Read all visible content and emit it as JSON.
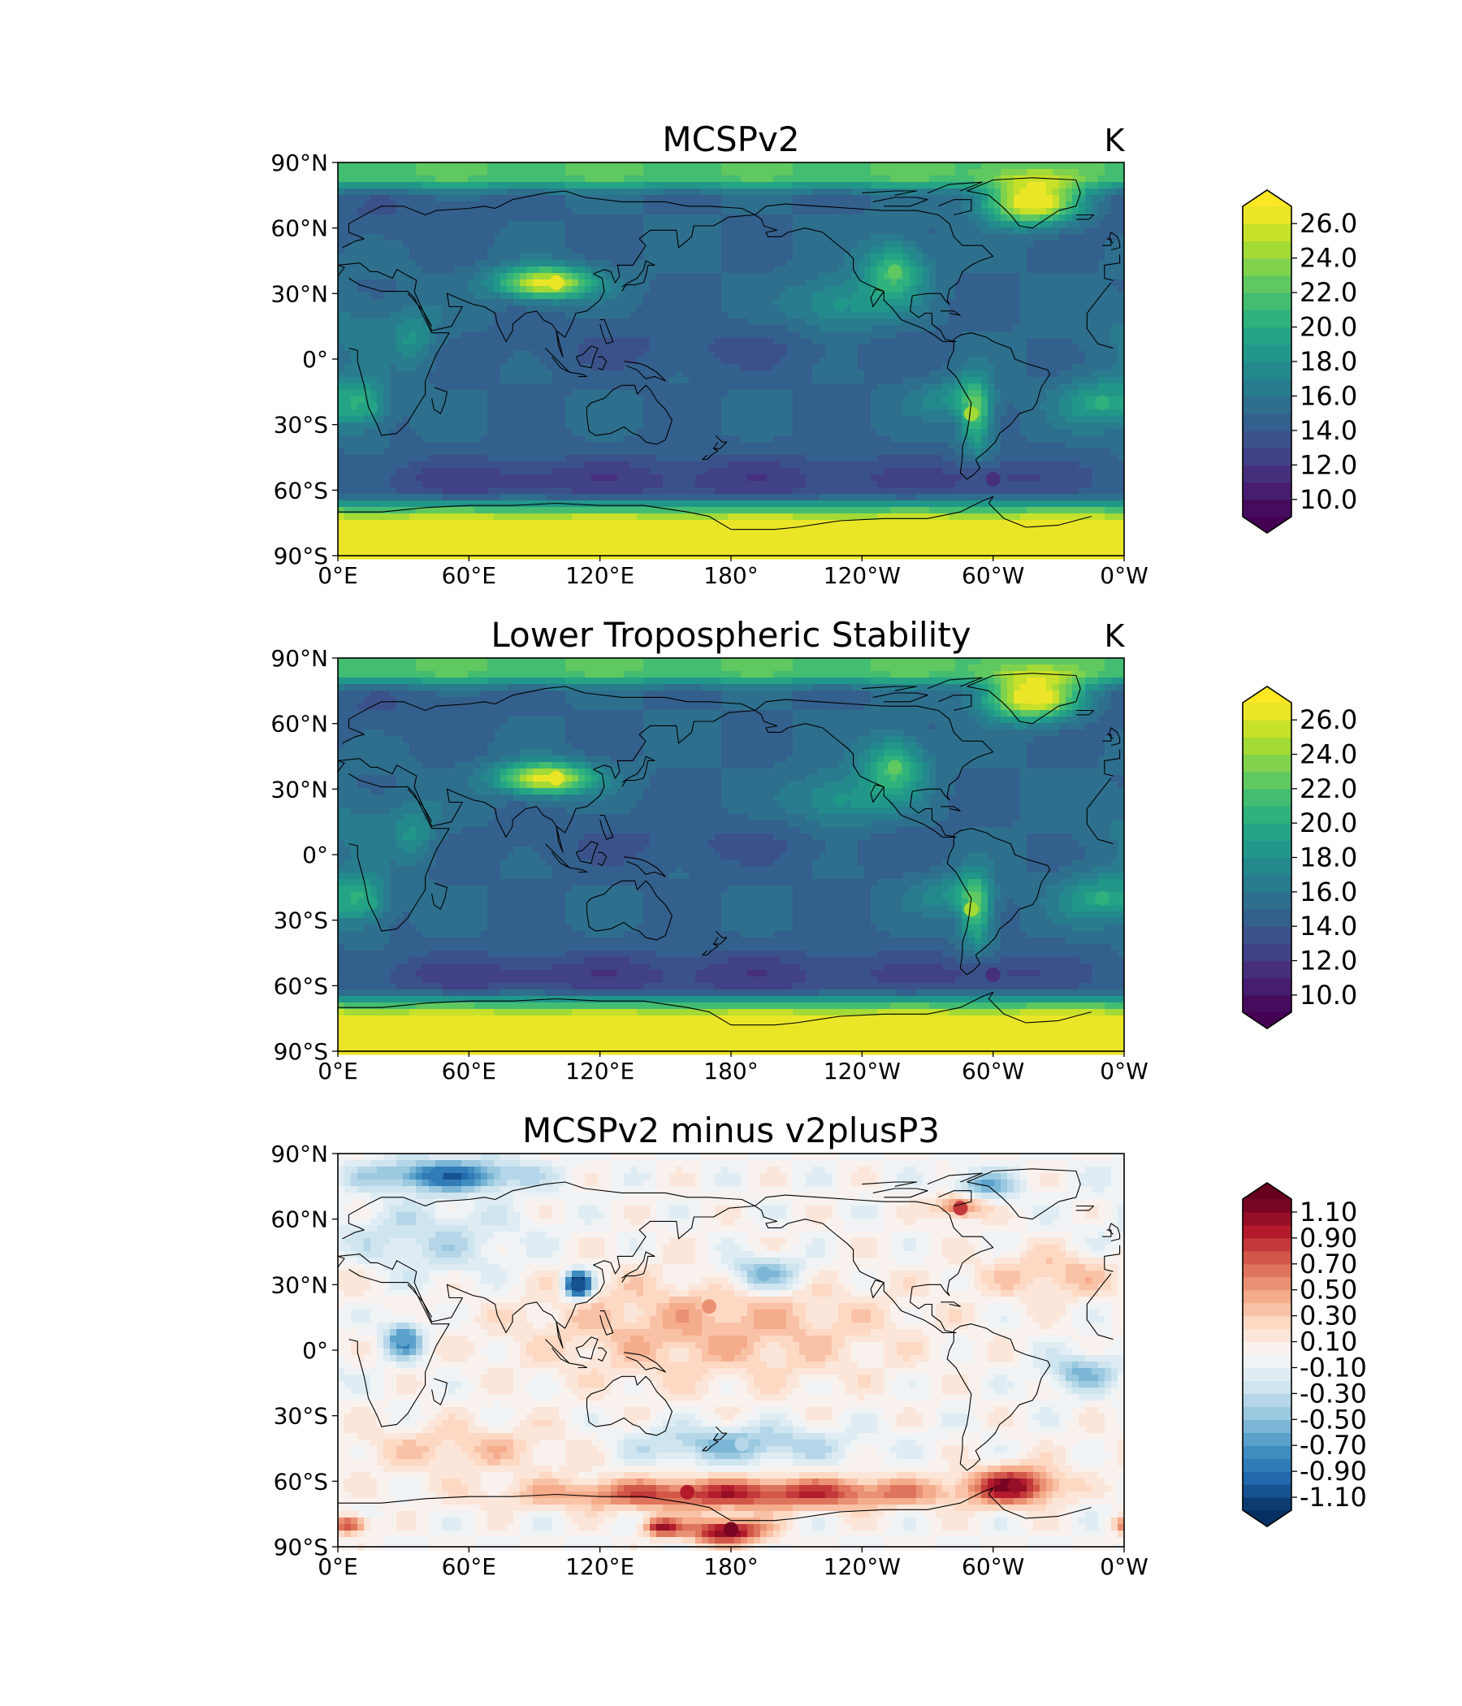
{
  "chart_data": [
    {
      "type": "heatmap",
      "title": "MCSPv2",
      "units": "K",
      "x_ticks": [
        "0°E",
        "60°E",
        "120°E",
        "180°",
        "120°W",
        "60°W",
        "0°W"
      ],
      "y_ticks": [
        "90°N",
        "60°N",
        "30°N",
        "0°",
        "30°S",
        "60°S",
        "90°S"
      ],
      "xlim": [
        0,
        360
      ],
      "ylim": [
        -90,
        90
      ],
      "colormap": "viridis",
      "colorbar": {
        "levels": [
          9,
          10,
          11,
          12,
          13,
          14,
          15,
          16,
          17,
          18,
          19,
          20,
          21,
          22,
          23,
          24,
          25,
          26,
          27
        ],
        "tick_values": [
          10,
          12,
          14,
          16,
          18,
          20,
          22,
          24,
          26
        ],
        "tick_labels": [
          "10.0",
          "12.0",
          "14.0",
          "16.0",
          "18.0",
          "20.0",
          "22.0",
          "24.0",
          "26.0"
        ],
        "extend": "both"
      },
      "features": [
        {
          "lon": 100,
          "lat": 35,
          "value": 27
        },
        {
          "lon": 320,
          "lat": 72,
          "value": 27
        },
        {
          "lon": 290,
          "lat": -25,
          "value": 24
        },
        {
          "lon": 255,
          "lat": 40,
          "value": 22
        },
        {
          "lon": 350,
          "lat": -20,
          "value": 20
        },
        {
          "lon": 15,
          "lat": -22,
          "value": 19
        },
        {
          "lon": 230,
          "lat": 25,
          "value": 18
        },
        {
          "lon": 170,
          "lat": -55,
          "value": 12
        },
        {
          "lon": 300,
          "lat": -55,
          "value": 11
        }
      ]
    },
    {
      "type": "heatmap",
      "title": "Lower Tropospheric Stability",
      "units": "K",
      "x_ticks": [
        "0°E",
        "60°E",
        "120°E",
        "180°",
        "120°W",
        "60°W",
        "0°W"
      ],
      "y_ticks": [
        "90°N",
        "60°N",
        "30°N",
        "0°",
        "30°S",
        "60°S",
        "90°S"
      ],
      "xlim": [
        0,
        360
      ],
      "ylim": [
        -90,
        90
      ],
      "colormap": "viridis",
      "colorbar": {
        "levels": [
          9,
          10,
          11,
          12,
          13,
          14,
          15,
          16,
          17,
          18,
          19,
          20,
          21,
          22,
          23,
          24,
          25,
          26,
          27
        ],
        "tick_values": [
          10,
          12,
          14,
          16,
          18,
          20,
          22,
          24,
          26
        ],
        "tick_labels": [
          "10.0",
          "12.0",
          "14.0",
          "16.0",
          "18.0",
          "20.0",
          "22.0",
          "24.0",
          "26.0"
        ],
        "extend": "both"
      },
      "features": [
        {
          "lon": 100,
          "lat": 35,
          "value": 27
        },
        {
          "lon": 320,
          "lat": 72,
          "value": 27
        },
        {
          "lon": 290,
          "lat": -25,
          "value": 24
        },
        {
          "lon": 255,
          "lat": 40,
          "value": 22
        },
        {
          "lon": 350,
          "lat": -20,
          "value": 20
        },
        {
          "lon": 15,
          "lat": -22,
          "value": 19
        },
        {
          "lon": 230,
          "lat": 25,
          "value": 18
        },
        {
          "lon": 170,
          "lat": -55,
          "value": 12
        },
        {
          "lon": 300,
          "lat": -55,
          "value": 11
        }
      ]
    },
    {
      "type": "heatmap",
      "title": "MCSPv2 minus v2plusP3",
      "units": "",
      "x_ticks": [
        "0°E",
        "60°E",
        "120°E",
        "180°",
        "120°W",
        "60°W",
        "0°W"
      ],
      "y_ticks": [
        "90°N",
        "60°N",
        "30°N",
        "0°",
        "30°S",
        "60°S",
        "90°S"
      ],
      "xlim": [
        0,
        360
      ],
      "ylim": [
        -90,
        90
      ],
      "colormap": "RdBu_r",
      "colorbar": {
        "levels": [
          -1.2,
          -1.1,
          -1.0,
          -0.9,
          -0.8,
          -0.7,
          -0.6,
          -0.5,
          -0.4,
          -0.3,
          -0.2,
          -0.1,
          0.0,
          0.1,
          0.2,
          0.3,
          0.4,
          0.5,
          0.6,
          0.7,
          0.8,
          0.9,
          1.0,
          1.1,
          1.2
        ],
        "tick_values": [
          -1.1,
          -0.9,
          -0.7,
          -0.5,
          -0.3,
          -0.1,
          0.1,
          0.3,
          0.5,
          0.7,
          0.9,
          1.1
        ],
        "tick_labels": [
          "-1.10",
          "-0.90",
          "-0.70",
          "-0.50",
          "-0.30",
          "-0.10",
          "0.10",
          "0.30",
          "0.50",
          "0.70",
          "0.90",
          "1.10"
        ],
        "extend": "both"
      },
      "features": [
        {
          "lon": 110,
          "lat": 30,
          "value": -1.1
        },
        {
          "lon": 45,
          "lat": 80,
          "value": -0.9
        },
        {
          "lon": 195,
          "lat": 35,
          "value": -0.6
        },
        {
          "lon": 30,
          "lat": 5,
          "value": -0.7
        },
        {
          "lon": 185,
          "lat": -43,
          "value": -0.4
        },
        {
          "lon": 170,
          "lat": 20,
          "value": 0.5
        },
        {
          "lon": 160,
          "lat": -65,
          "value": 0.9
        },
        {
          "lon": 180,
          "lat": -82,
          "value": 1.1
        },
        {
          "lon": 310,
          "lat": -62,
          "value": 1.0
        },
        {
          "lon": 285,
          "lat": 65,
          "value": 0.8
        }
      ]
    }
  ]
}
